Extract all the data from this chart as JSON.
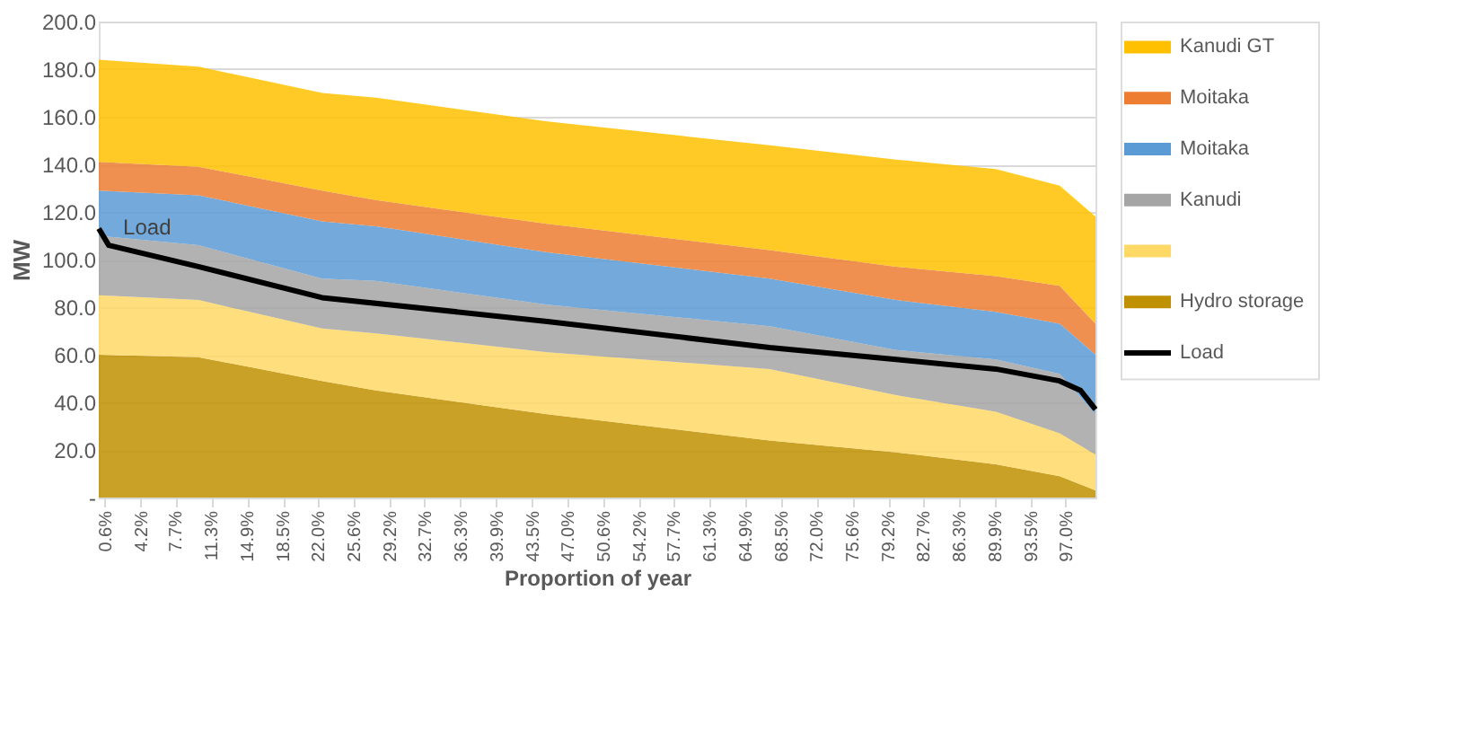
{
  "chart_data": {
    "type": "area",
    "stacked": true,
    "xlabel": "Proportion of year",
    "ylabel": "MW",
    "x": [
      0,
      10,
      22.4,
      27.8,
      45,
      67.3,
      80,
      90,
      96.4,
      100
    ],
    "xlim": [
      0,
      100
    ],
    "xticks": [
      {
        "value": 0.6,
        "label": "0.6%"
      },
      {
        "value": 4.2,
        "label": "4.2%"
      },
      {
        "value": 7.7,
        "label": "7.7%"
      },
      {
        "value": 11.3,
        "label": "11.3%"
      },
      {
        "value": 14.9,
        "label": "14.9%"
      },
      {
        "value": 18.5,
        "label": "18.5%"
      },
      {
        "value": 22.0,
        "label": "22.0%"
      },
      {
        "value": 25.6,
        "label": "25.6%"
      },
      {
        "value": 29.2,
        "label": "29.2%"
      },
      {
        "value": 32.7,
        "label": "32.7%"
      },
      {
        "value": 36.3,
        "label": "36.3%"
      },
      {
        "value": 39.9,
        "label": "39.9%"
      },
      {
        "value": 43.5,
        "label": "43.5%"
      },
      {
        "value": 47.0,
        "label": "47.0%"
      },
      {
        "value": 50.6,
        "label": "50.6%"
      },
      {
        "value": 54.2,
        "label": "54.2%"
      },
      {
        "value": 57.7,
        "label": "57.7%"
      },
      {
        "value": 61.3,
        "label": "61.3%"
      },
      {
        "value": 64.9,
        "label": "64.9%"
      },
      {
        "value": 68.5,
        "label": "68.5%"
      },
      {
        "value": 72.0,
        "label": "72.0%"
      },
      {
        "value": 75.6,
        "label": "75.6%"
      },
      {
        "value": 79.2,
        "label": "79.2%"
      },
      {
        "value": 82.7,
        "label": "82.7%"
      },
      {
        "value": 86.3,
        "label": "86.3%"
      },
      {
        "value": 89.9,
        "label": "89.9%"
      },
      {
        "value": 93.5,
        "label": "93.5%"
      },
      {
        "value": 97.0,
        "label": "97.0%"
      }
    ],
    "ylim": [
      0,
      200
    ],
    "yticks": [
      {
        "value": 0,
        "label": "-"
      },
      {
        "value": 20,
        "label": "20.0"
      },
      {
        "value": 40,
        "label": "40.0"
      },
      {
        "value": 60,
        "label": "60.0"
      },
      {
        "value": 80,
        "label": "80.0"
      },
      {
        "value": 100,
        "label": "100.0"
      },
      {
        "value": 120,
        "label": "120.0"
      },
      {
        "value": 140,
        "label": "140.0"
      },
      {
        "value": 160,
        "label": "160.0"
      },
      {
        "value": 180,
        "label": "180.0"
      },
      {
        "value": 200,
        "label": "200.0"
      }
    ],
    "grid": "y",
    "legend": "right",
    "series": [
      {
        "name": "Hydro storage",
        "color": "#bf9000",
        "values": [
          60,
          59,
          49,
          45,
          35,
          24,
          19,
          14,
          9,
          3
        ]
      },
      {
        "color": "#ffd966",
        "values": [
          25,
          24,
          22,
          24,
          26,
          30,
          24,
          22,
          18,
          15
        ]
      },
      {
        "name": "Kanudi",
        "color": "#a5a5a5",
        "values": [
          25,
          23,
          21,
          22,
          20,
          18,
          19,
          22,
          25,
          17
        ]
      },
      {
        "name": "Moitaka",
        "color": "#5b9bd5",
        "values": [
          19,
          21,
          24,
          23,
          22,
          20,
          21,
          20,
          21,
          25
        ]
      },
      {
        "name": "Moitaka",
        "color": "#ed7d31",
        "values": [
          12,
          12,
          13,
          11,
          12,
          12,
          14,
          15,
          16,
          13
        ]
      },
      {
        "name": "Kanudi GT",
        "color": "#ffc000",
        "values": [
          43,
          42,
          41,
          43,
          43,
          44,
          45,
          45,
          42,
          45
        ]
      },
      {
        "name": "Load",
        "type": "line",
        "color": "#000000",
        "marker": "none",
        "x": [
          0,
          1,
          10,
          22.4,
          45,
          67.3,
          80,
          90,
          96.4,
          98.5,
          100
        ],
        "values": [
          113,
          106,
          97,
          84,
          74,
          63,
          58,
          54,
          49,
          45,
          37
        ]
      }
    ],
    "annotations": [
      {
        "text": "Load",
        "x": 1,
        "y": 106
      }
    ]
  }
}
